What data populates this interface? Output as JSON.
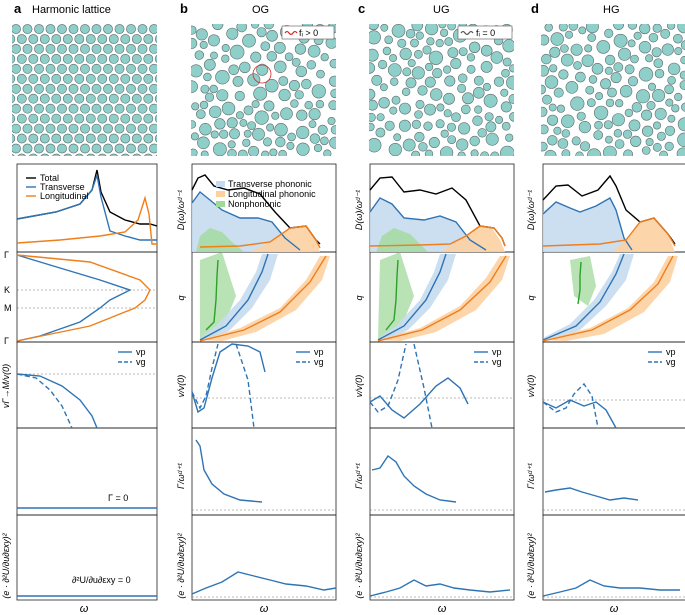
{
  "columns": [
    {
      "letter": "a",
      "title": "Harmonic lattice"
    },
    {
      "letter": "b",
      "title": "OG"
    },
    {
      "letter": "c",
      "title": "UG"
    },
    {
      "letter": "d",
      "title": "HG"
    }
  ],
  "insets": {
    "og": "fᵢ > 0",
    "ug": "fᵢ = 0"
  },
  "ylabels": {
    "dos": "D(ω)/ωᵈ⁻¹",
    "q": "q",
    "v_a": "vΓ→M/v(0)",
    "v": "v/v(0)",
    "gamma": "Γ/ωᵈ⁺¹",
    "coupling": "(e · ∂²U/∂u∂εxy)²"
  },
  "ticks": {
    "gamma_top": "Γ",
    "k": "K",
    "m": "M",
    "gamma_bot": "Γ"
  },
  "legend_a": {
    "total": "Total",
    "transverse": "Transverse",
    "longitudinal": "Longitudinal"
  },
  "legend_b": {
    "transverse_phononic": "Transverse phononic",
    "longitudinal_phononic": "Longitudinal phononic",
    "nonphononic": "Nonphononic"
  },
  "vlegend": {
    "vp": "vp",
    "vg": "vg"
  },
  "annotations": {
    "gamma_zero": "Γ = 0",
    "coupling_zero": "∂²U/∂u∂εxy = 0"
  },
  "xlabel": "ω",
  "colors": {
    "total": "#000000",
    "transverse": "#2e74b5",
    "longitudinal": "#f07e1b",
    "nonphononic": "#2ca02c",
    "particle": "#8ecfc9",
    "transverse_fill": "#c6dbef",
    "longitudinal_fill": "#fdd0a2",
    "nonphononic_fill": "#a1d99b"
  }
}
